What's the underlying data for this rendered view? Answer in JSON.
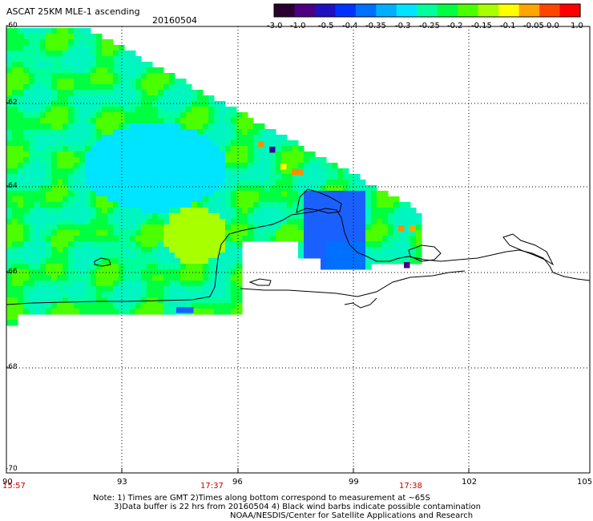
{
  "header": {
    "title": "ASCAT 25KM MLE-1 ascending",
    "date": "20160504"
  },
  "colorbar": {
    "labels": [
      "-3.0",
      "-1.0",
      "-0.5",
      "-0.4",
      "-0.35",
      "-0.3",
      "-0.25",
      "-0.2",
      "-0.15",
      "-0.1",
      "-0.05",
      "0.0",
      "1.0"
    ],
    "colors": [
      "#2a0030",
      "#4b0082",
      "#1f10c0",
      "#0033ff",
      "#0070ff",
      "#00b0ff",
      "#00e5ff",
      "#00ff9c",
      "#00ff40",
      "#4cff00",
      "#a8ff00",
      "#ffff00",
      "#ffa500",
      "#ff4500",
      "#ff0000"
    ]
  },
  "axes": {
    "lat_labels": [
      "-60",
      "-62",
      "-64",
      "-66",
      "-68",
      "-70"
    ],
    "lon_labels": [
      "90",
      "93",
      "96",
      "99",
      "102",
      "105"
    ],
    "time_labels": [
      "15:57",
      "17:37",
      "17:38"
    ]
  },
  "notes": {
    "line1": "Note: 1) Times are GMT 2)Times along bottom correspond to measurement at ~65S",
    "line2": "3)Data buffer is 22 hrs from 20160504 4) Black wind barbs indicate possible contamination",
    "line3": "NOAA/NESDIS/Center for Satellite Applications and Research"
  }
}
